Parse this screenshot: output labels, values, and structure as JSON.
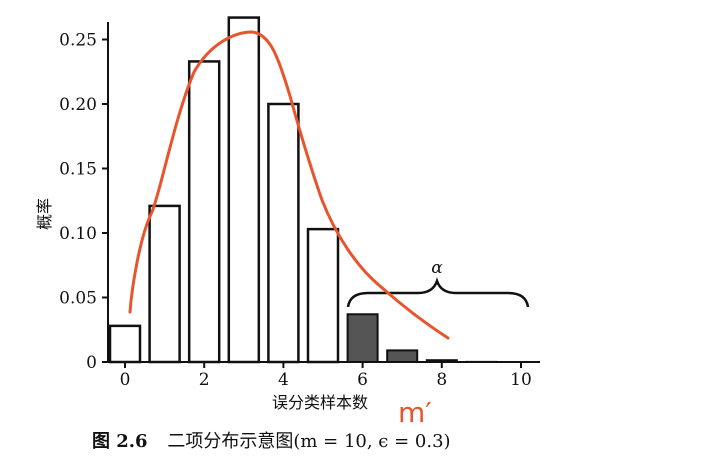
{
  "chart_data": {
    "type": "bar",
    "x": [
      0,
      1,
      2,
      3,
      4,
      5,
      6,
      7,
      8,
      9,
      10
    ],
    "x_tick_labels": [
      "0",
      "2",
      "4",
      "6",
      "8",
      "10"
    ],
    "x_tick_values": [
      0,
      2,
      4,
      6,
      8,
      10
    ],
    "values": [
      0.028,
      0.121,
      0.233,
      0.267,
      0.2,
      0.103,
      0.037,
      0.009,
      0.0014,
      0.0001,
      0.0
    ],
    "highlighted_from_x": 6,
    "y_ticks": [
      0,
      0.05,
      0.1,
      0.15,
      0.2,
      0.25
    ],
    "y_tick_labels": [
      "0",
      "0.05",
      "0.10",
      "0.15",
      "0.20",
      "0.25"
    ],
    "ylim": [
      0,
      0.27
    ],
    "xlim": [
      -0.6,
      10.3
    ],
    "ylabel": "概率",
    "xlabel": "误分类样本数",
    "brace_label": "α",
    "caption_fig": "图 2.6",
    "caption_text": "二项分布示意图(m = 10, ϵ = 0.3)",
    "annotation_text": "m′",
    "colors": {
      "bar_fill": "#ffffff",
      "bar_highlight": "#555555",
      "axis": "#111111",
      "annotation": "#e8552d"
    }
  }
}
